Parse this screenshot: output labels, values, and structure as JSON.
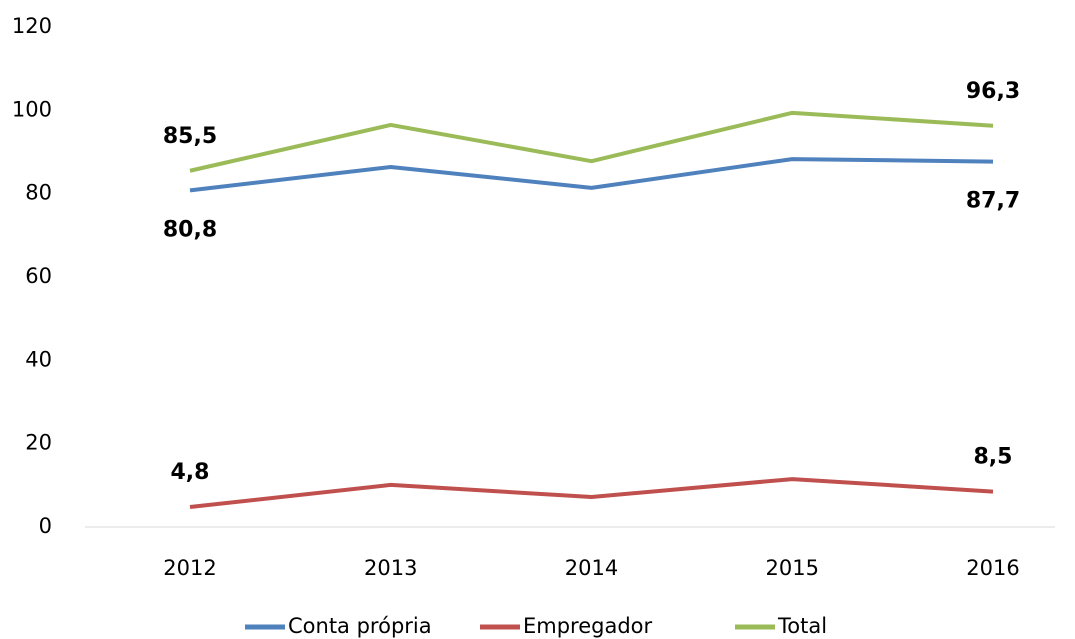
{
  "chart_data": {
    "type": "line",
    "categories": [
      "2012",
      "2013",
      "2014",
      "2015",
      "2016"
    ],
    "series": [
      {
        "name": "Conta própria",
        "color": "#4f81bd",
        "values": [
          80.8,
          86.4,
          81.4,
          88.3,
          87.7
        ],
        "value_labels": [
          "80,8",
          null,
          null,
          null,
          "87,7"
        ]
      },
      {
        "name": "Empregador",
        "color": "#c0504d",
        "values": [
          4.8,
          10.1,
          7.2,
          11.5,
          8.5
        ],
        "value_labels": [
          "4,8",
          null,
          null,
          null,
          "8,5"
        ]
      },
      {
        "name": "Total",
        "color": "#9bbb59",
        "values": [
          85.5,
          96.5,
          87.8,
          99.4,
          96.3
        ],
        "value_labels": [
          "85,5",
          null,
          null,
          null,
          "96,3"
        ]
      }
    ],
    "ylim": [
      0,
      120
    ],
    "yticks": [
      0,
      20,
      40,
      60,
      80,
      100,
      120
    ],
    "grid": false,
    "legend": "bottom"
  }
}
